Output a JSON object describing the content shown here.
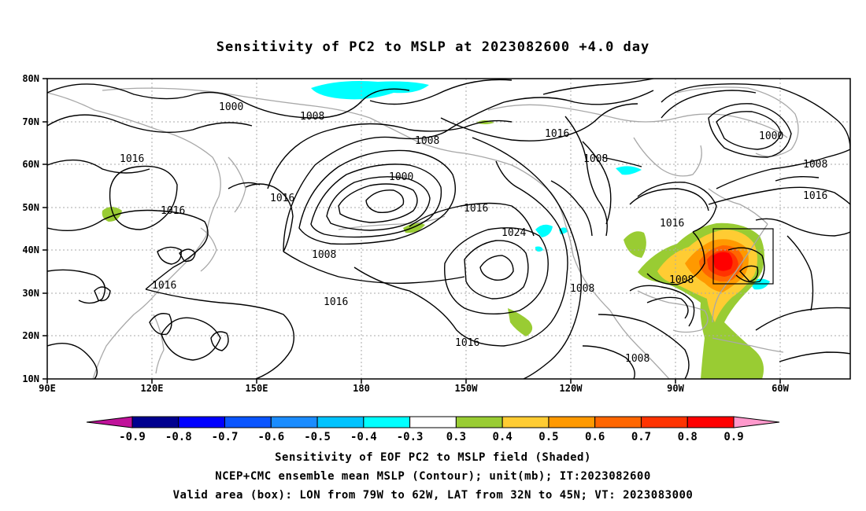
{
  "title": "Sensitivity of PC2 to MSLP at 2023082600 +4.0 day",
  "lat_labels": [
    "80N",
    "70N",
    "60N",
    "50N",
    "40N",
    "30N",
    "20N",
    "10N"
  ],
  "lon_labels": [
    "90E",
    "120E",
    "150E",
    "180",
    "150W",
    "120W",
    "90W",
    "60W"
  ],
  "contour_labels": {
    "c1000a": "1000",
    "c1008a": "1008",
    "c1016a": "1016",
    "c1016b": "1016",
    "c1016c": "1016",
    "c1000b": "1000",
    "c1008b": "1008",
    "c1008c": "1008",
    "c1016d": "1016",
    "c1024": "1024",
    "c1016e": "1016",
    "c1016f": "1016",
    "c1016g": "1016",
    "c1008d": "1008",
    "c1000c": "1000",
    "c1008e": "1008",
    "c1016h": "1016",
    "c1016i": "1016",
    "c1008f": "1008",
    "c1008g": "1008",
    "c1008h": "1008",
    "c1016j": "1016"
  },
  "colorbar": {
    "colors": [
      "#c0129a",
      "#00008f",
      "#0000ff",
      "#0a55ff",
      "#1a8cff",
      "#00c3ff",
      "#00ffff",
      "#ffffff",
      "#99cc33",
      "#ffcc33",
      "#ff9900",
      "#ff6600",
      "#ff3300",
      "#ff0000",
      "#ff99cc"
    ],
    "labels": [
      "-0.9",
      "-0.8",
      "-0.7",
      "-0.6",
      "-0.5",
      "-0.4",
      "-0.3",
      "0.3",
      "0.4",
      "0.5",
      "0.6",
      "0.7",
      "0.8",
      "0.9"
    ]
  },
  "footer": {
    "line1": "Sensitivity of EOF PC2 to MSLP field (Shaded)",
    "line2": "NCEP+CMC ensemble mean MSLP (Contour); unit(mb); IT:2023082600",
    "line3": "Valid area (box): LON from 79W to 62W, LAT from 32N to 45N; VT: 2023083000"
  },
  "valid_box": {
    "lon_from": "79W",
    "lon_to": "62W",
    "lat_from": "32N",
    "lat_to": "45N"
  }
}
